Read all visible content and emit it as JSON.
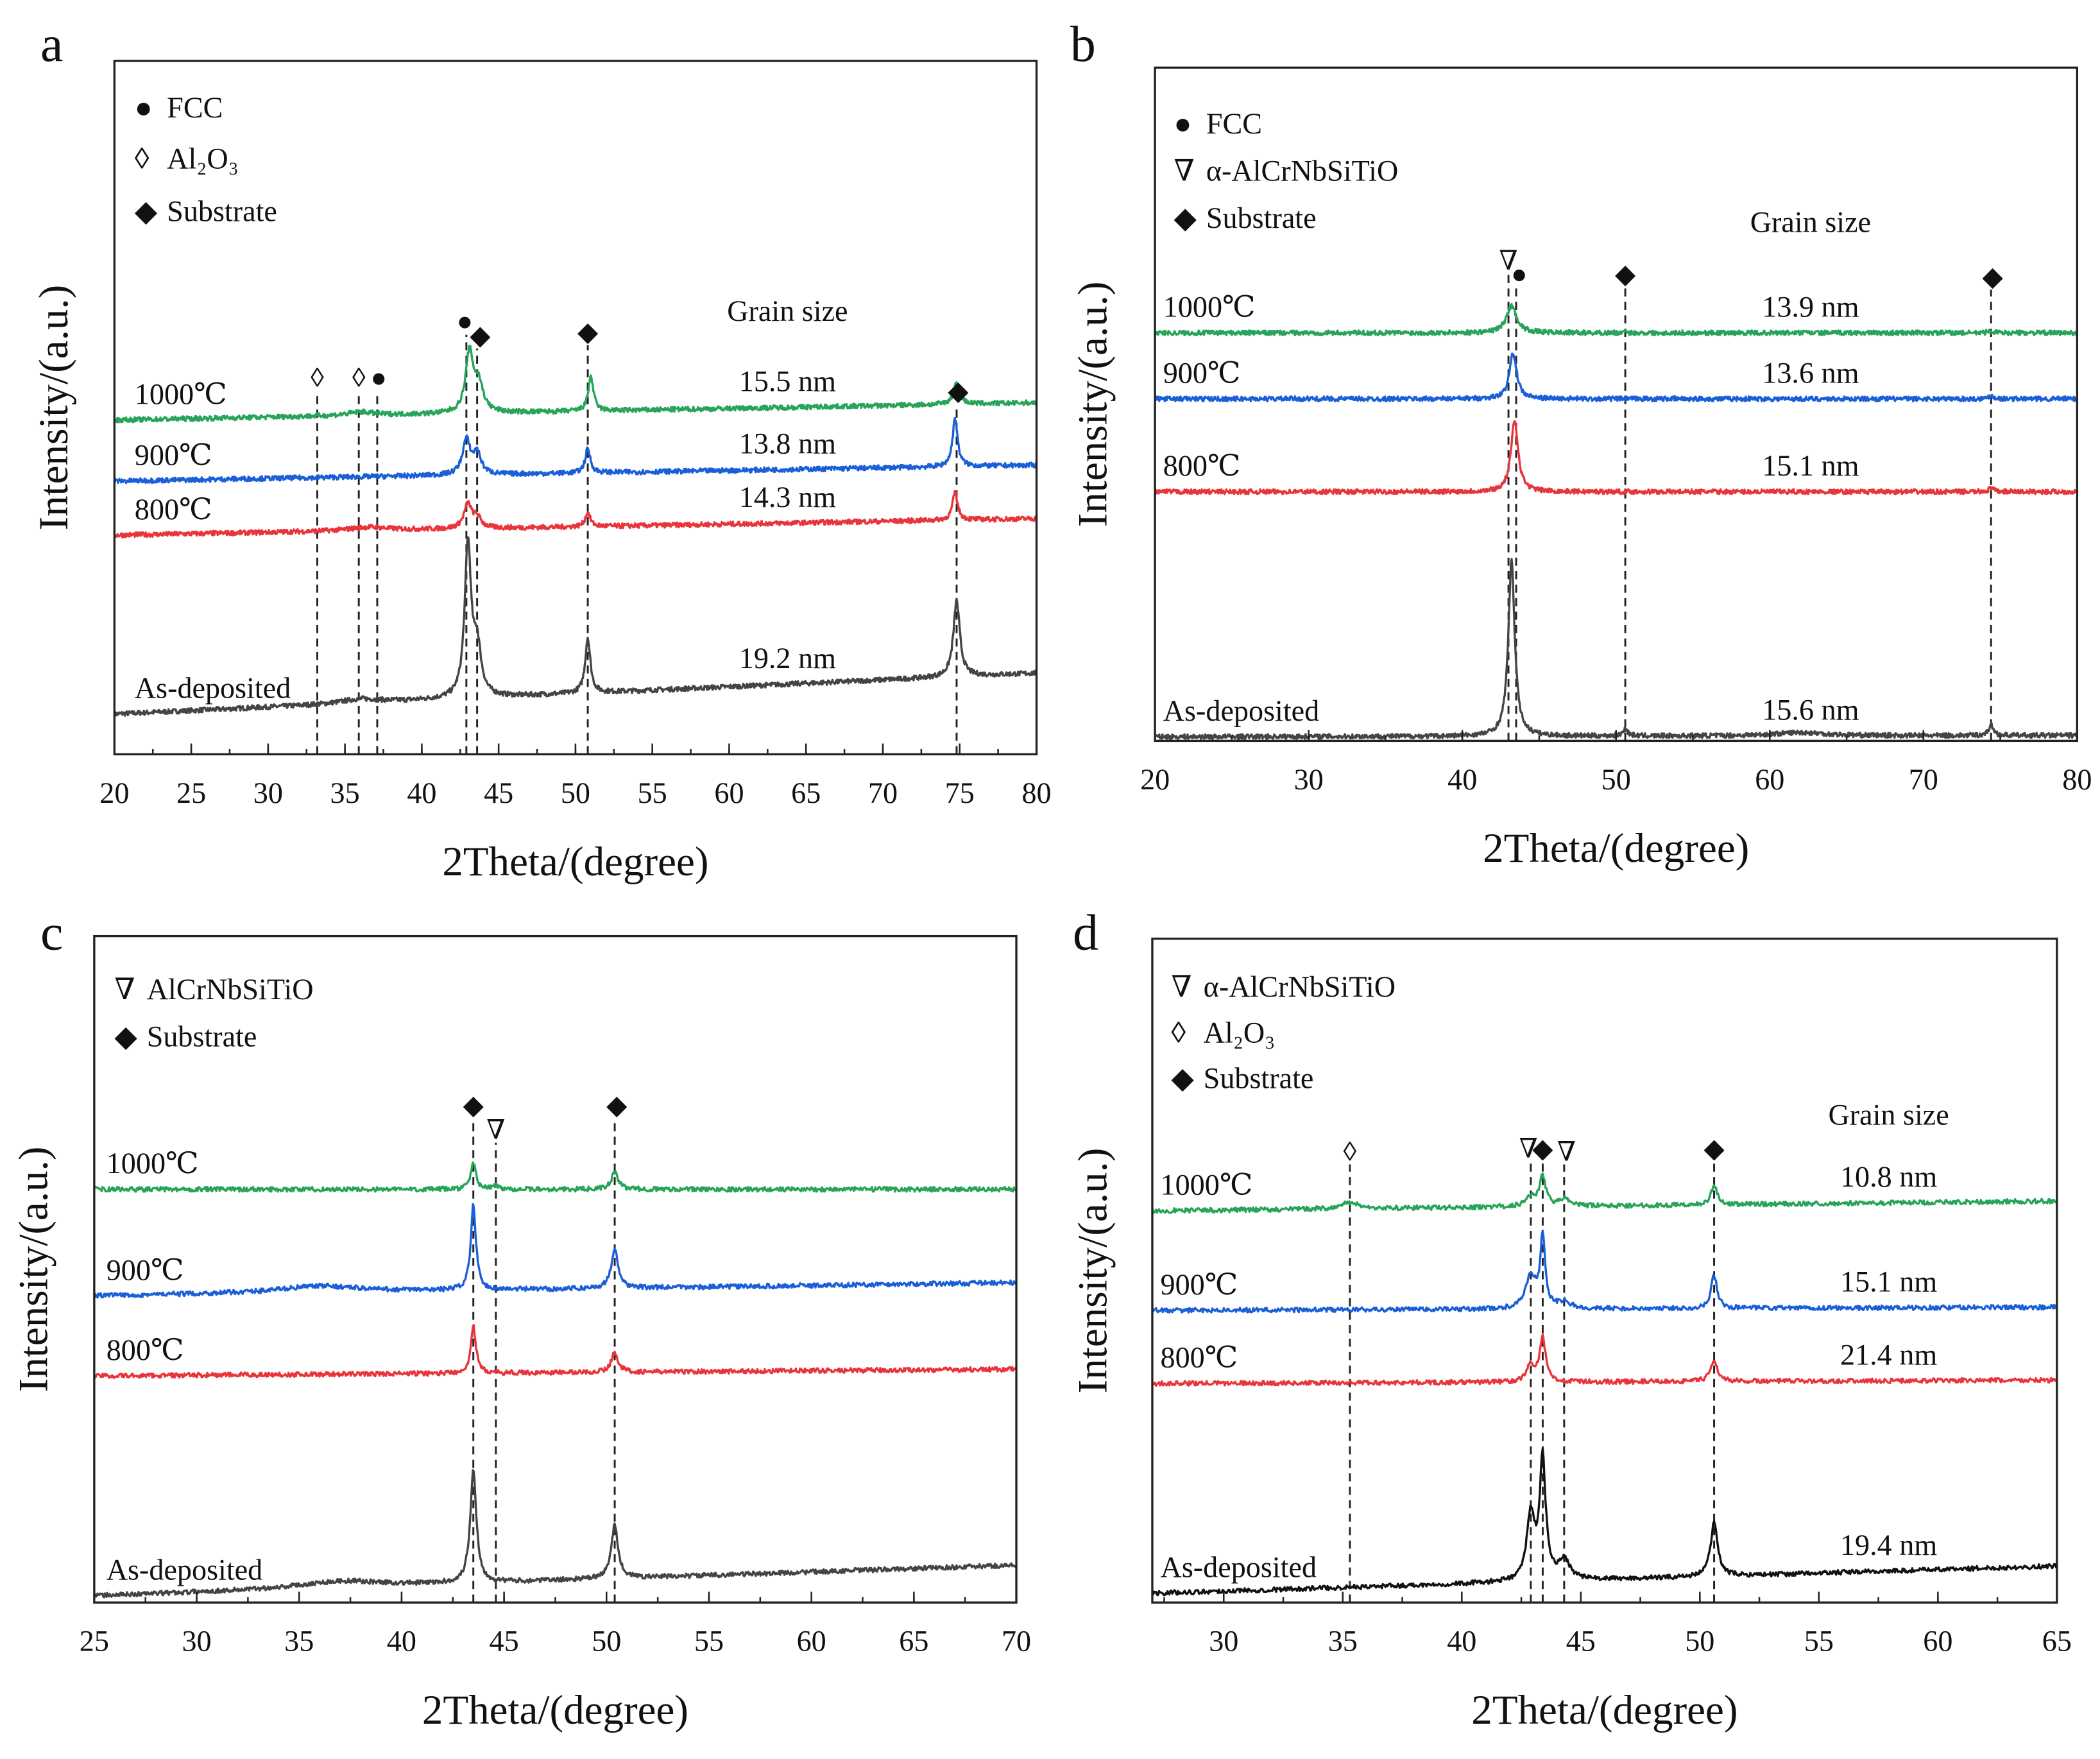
{
  "colors": {
    "1000": "#27a35a",
    "900": "#1b5fd8",
    "800": "#e8353b",
    "as": "#444444",
    "as_d": "#111111"
  },
  "chart_data": [
    {
      "panel": "a",
      "type": "line",
      "xlabel": "2Theta/(degree)",
      "ylabel": "Intensity/(a.u.)",
      "xlim": [
        20,
        80
      ],
      "ylim": [
        0,
        100
      ],
      "xticks": [
        20,
        25,
        30,
        35,
        40,
        45,
        50,
        55,
        60,
        65,
        70,
        75,
        80
      ],
      "legend": [
        {
          "symbol": "●",
          "label": "FCC"
        },
        {
          "symbol": "◊",
          "label": "Al₂O₃"
        },
        {
          "symbol": "◆",
          "label": "Substrate"
        }
      ],
      "grain_header": "Grain size",
      "series": [
        {
          "name": "As-deposited",
          "key": "as",
          "base": [
            5.8,
            11.7
          ],
          "grain": "19.2 nm",
          "peaks": [
            [
              36,
              0.6,
              1.5
            ],
            [
              43.0,
              22,
              0.25
            ],
            [
              43.6,
              7,
              0.3
            ],
            [
              50.8,
              8,
              0.2
            ],
            [
              74.8,
              11,
              0.25
            ]
          ]
        },
        {
          "name": "800℃",
          "key": "800",
          "base": [
            31.6,
            34
          ],
          "grain": "14.3 nm",
          "peaks": [
            [
              36.5,
              0.5,
              1.5
            ],
            [
              43.0,
              3.5,
              0.3
            ],
            [
              43.6,
              1.5,
              0.3
            ],
            [
              50.8,
              2,
              0.2
            ],
            [
              74.7,
              4,
              0.2
            ]
          ]
        },
        {
          "name": "900℃",
          "key": "900",
          "base": [
            39.4,
            41.7
          ],
          "grain": "13.8 nm",
          "peaks": [
            [
              42.9,
              5,
              0.3
            ],
            [
              43.6,
              3,
              0.3
            ],
            [
              50.8,
              3.5,
              0.2
            ],
            [
              74.7,
              7,
              0.2
            ]
          ]
        },
        {
          "name": "1000℃",
          "key": "1000",
          "base": [
            48.2,
            50.7
          ],
          "grain": "15.5 nm",
          "peaks": [
            [
              36,
              0.5,
              1.0
            ],
            [
              43.1,
              8.5,
              0.3
            ],
            [
              43.7,
              4,
              0.35
            ],
            [
              51.0,
              5,
              0.2
            ],
            [
              74.8,
              3,
              0.25
            ]
          ]
        }
      ],
      "reference_lines": [
        33.2,
        35.9,
        37.1,
        42.9,
        43.6,
        50.8,
        74.8
      ],
      "markers": [
        {
          "x": 33.2,
          "y": 54.4,
          "symbol": "◊"
        },
        {
          "x": 35.9,
          "y": 54.4,
          "symbol": "◊"
        },
        {
          "x": 37.2,
          "y": 54.4,
          "symbol": "●"
        },
        {
          "x": 42.8,
          "y": 62.5,
          "symbol": "●"
        },
        {
          "x": 43.8,
          "y": 60.5,
          "symbol": "◆"
        },
        {
          "x": 50.8,
          "y": 61,
          "symbol": "◆"
        },
        {
          "x": 74.9,
          "y": 52.5,
          "symbol": "◆"
        }
      ]
    },
    {
      "panel": "b",
      "type": "line",
      "xlabel": "2Theta/(degree)",
      "ylabel": "Intensity/(a.u.)",
      "xlim": [
        20,
        80
      ],
      "ylim": [
        0,
        100
      ],
      "xticks": [
        20,
        30,
        40,
        50,
        60,
        70,
        80
      ],
      "legend": [
        {
          "symbol": "●",
          "label": "FCC"
        },
        {
          "symbol": "∇",
          "label": "α-AlCrNbSiTiO"
        },
        {
          "symbol": "◆",
          "label": "Substrate"
        }
      ],
      "grain_header": "Grain size",
      "series": [
        {
          "name": "As-deposited",
          "key": "as",
          "base": [
            0.6,
            0.8
          ],
          "grain": "15.6 nm",
          "peaks": [
            [
              43.2,
              26,
              0.25
            ],
            [
              50.6,
              1,
              0.2
            ],
            [
              62,
              0.5,
              2
            ],
            [
              74.4,
              1.5,
              0.2
            ]
          ]
        },
        {
          "name": "800℃",
          "key": "800",
          "base": [
            37,
            37
          ],
          "grain": "15.1 nm",
          "peaks": [
            [
              43.4,
              10.6,
              0.28
            ],
            [
              74.4,
              0.5,
              0.2
            ]
          ]
        },
        {
          "name": "900℃",
          "key": "900",
          "base": [
            50.8,
            50.8
          ],
          "grain": "13.6 nm",
          "peaks": [
            [
              43.3,
              6.8,
              0.28
            ],
            [
              74.4,
              0.5,
              0.2
            ]
          ]
        },
        {
          "name": "1000℃",
          "key": "1000",
          "base": [
            60.6,
            60.6
          ],
          "grain": "13.9 nm",
          "peaks": [
            [
              43.2,
              4,
              0.4
            ],
            [
              74.4,
              0.3,
              0.2
            ]
          ]
        }
      ],
      "reference_lines": [
        43.0,
        43.5,
        50.6,
        74.4
      ],
      "markers": [
        {
          "x": 43.0,
          "y": 71.4,
          "symbol": "∇"
        },
        {
          "x": 43.7,
          "y": 69.4,
          "symbol": "●"
        },
        {
          "x": 50.6,
          "y": 69.4,
          "symbol": "◆"
        },
        {
          "x": 74.5,
          "y": 69,
          "symbol": "◆"
        }
      ]
    },
    {
      "panel": "c",
      "type": "line",
      "xlabel": "2Theta/(degree)",
      "ylabel": "Intensity/(a.u.)",
      "xlim": [
        25,
        70
      ],
      "ylim": [
        0,
        100
      ],
      "xticks": [
        25,
        30,
        35,
        40,
        45,
        50,
        55,
        60,
        65,
        70
      ],
      "legend": [
        {
          "symbol": "∇",
          "label": "AlCrNbSiTiO"
        },
        {
          "symbol": "◆",
          "label": "Substrate"
        }
      ],
      "series": [
        {
          "name": "As-deposited",
          "key": "as",
          "base": [
            1,
            5.6
          ],
          "peaks": [
            [
              37,
              1,
              2.5
            ],
            [
              43.5,
              17,
              0.18
            ],
            [
              50.4,
              8,
              0.2
            ]
          ]
        },
        {
          "name": "800℃",
          "key": "800",
          "base": [
            34,
            35
          ],
          "peaks": [
            [
              43.5,
              7,
              0.15
            ],
            [
              50.4,
              3,
              0.2
            ]
          ]
        },
        {
          "name": "900℃",
          "key": "900",
          "base": [
            46,
            48
          ],
          "peaks": [
            [
              36,
              1,
              2.5
            ],
            [
              43.5,
              13,
              0.15
            ],
            [
              50.4,
              6,
              0.2
            ]
          ]
        },
        {
          "name": "1000℃",
          "key": "1000",
          "base": [
            62,
            62
          ],
          "peaks": [
            [
              43.5,
              4,
              0.15
            ],
            [
              44.6,
              0.5,
              0.2
            ],
            [
              50.4,
              2.5,
              0.2
            ]
          ]
        }
      ],
      "reference_lines": [
        43.5,
        44.6,
        50.4
      ],
      "markers": [
        {
          "x": 43.5,
          "y": 74.7,
          "symbol": "◆"
        },
        {
          "x": 44.6,
          "y": 71,
          "symbol": "∇"
        },
        {
          "x": 50.5,
          "y": 74.7,
          "symbol": "◆"
        }
      ]
    },
    {
      "panel": "d",
      "type": "line",
      "xlabel": "2Theta/(degree)",
      "ylabel": "Intensity/(a.u.)",
      "xlim": [
        27,
        65
      ],
      "ylim": [
        0,
        100
      ],
      "xticks": [
        30,
        35,
        40,
        45,
        50,
        55,
        60,
        65
      ],
      "legend": [
        {
          "symbol": "∇",
          "label": "α-AlCrNbSiTiO"
        },
        {
          "symbol": "◊",
          "label": "Al₂O₃"
        },
        {
          "symbol": "◆",
          "label": "Substrate"
        }
      ],
      "grain_header": "Grain size",
      "series": [
        {
          "name": "As-deposited",
          "key": "as_d",
          "base": [
            1.4,
            5.5
          ],
          "grain": "19.4 nm",
          "peaks": [
            [
              42.9,
              10,
              0.2
            ],
            [
              43.4,
              18,
              0.15
            ],
            [
              44.3,
              3,
              0.3
            ],
            [
              50.6,
              8,
              0.18
            ]
          ]
        },
        {
          "name": "800℃",
          "key": "800",
          "base": [
            33,
            33.5
          ],
          "grain": "21.4 nm",
          "peaks": [
            [
              42.9,
              2.5,
              0.2
            ],
            [
              43.4,
              6.5,
              0.15
            ],
            [
              50.6,
              3,
              0.18
            ]
          ]
        },
        {
          "name": "900℃",
          "key": "900",
          "base": [
            44,
            44.5
          ],
          "grain": "15.1 nm",
          "peaks": [
            [
              42.9,
              5,
              0.25
            ],
            [
              43.4,
              11,
              0.12
            ],
            [
              44.3,
              1,
              0.3
            ],
            [
              50.6,
              5,
              0.15
            ]
          ]
        },
        {
          "name": "1000℃",
          "key": "1000",
          "base": [
            59,
            60.5
          ],
          "grain": "10.8 nm",
          "peaks": [
            [
              35.3,
              1,
              0.4
            ],
            [
              42.9,
              1.5,
              0.25
            ],
            [
              43.4,
              4.5,
              0.15
            ],
            [
              44.3,
              1,
              0.3
            ],
            [
              50.6,
              3,
              0.15
            ]
          ]
        }
      ],
      "reference_lines": [
        35.3,
        42.9,
        43.4,
        44.3,
        50.6
      ],
      "markers": [
        {
          "x": 35.3,
          "y": 68,
          "symbol": "◊"
        },
        {
          "x": 42.8,
          "y": 68.5,
          "symbol": "∇"
        },
        {
          "x": 43.4,
          "y": 68.5,
          "symbol": "◆"
        },
        {
          "x": 44.4,
          "y": 68,
          "symbol": "∇"
        },
        {
          "x": 50.6,
          "y": 68.5,
          "symbol": "◆"
        }
      ]
    }
  ]
}
